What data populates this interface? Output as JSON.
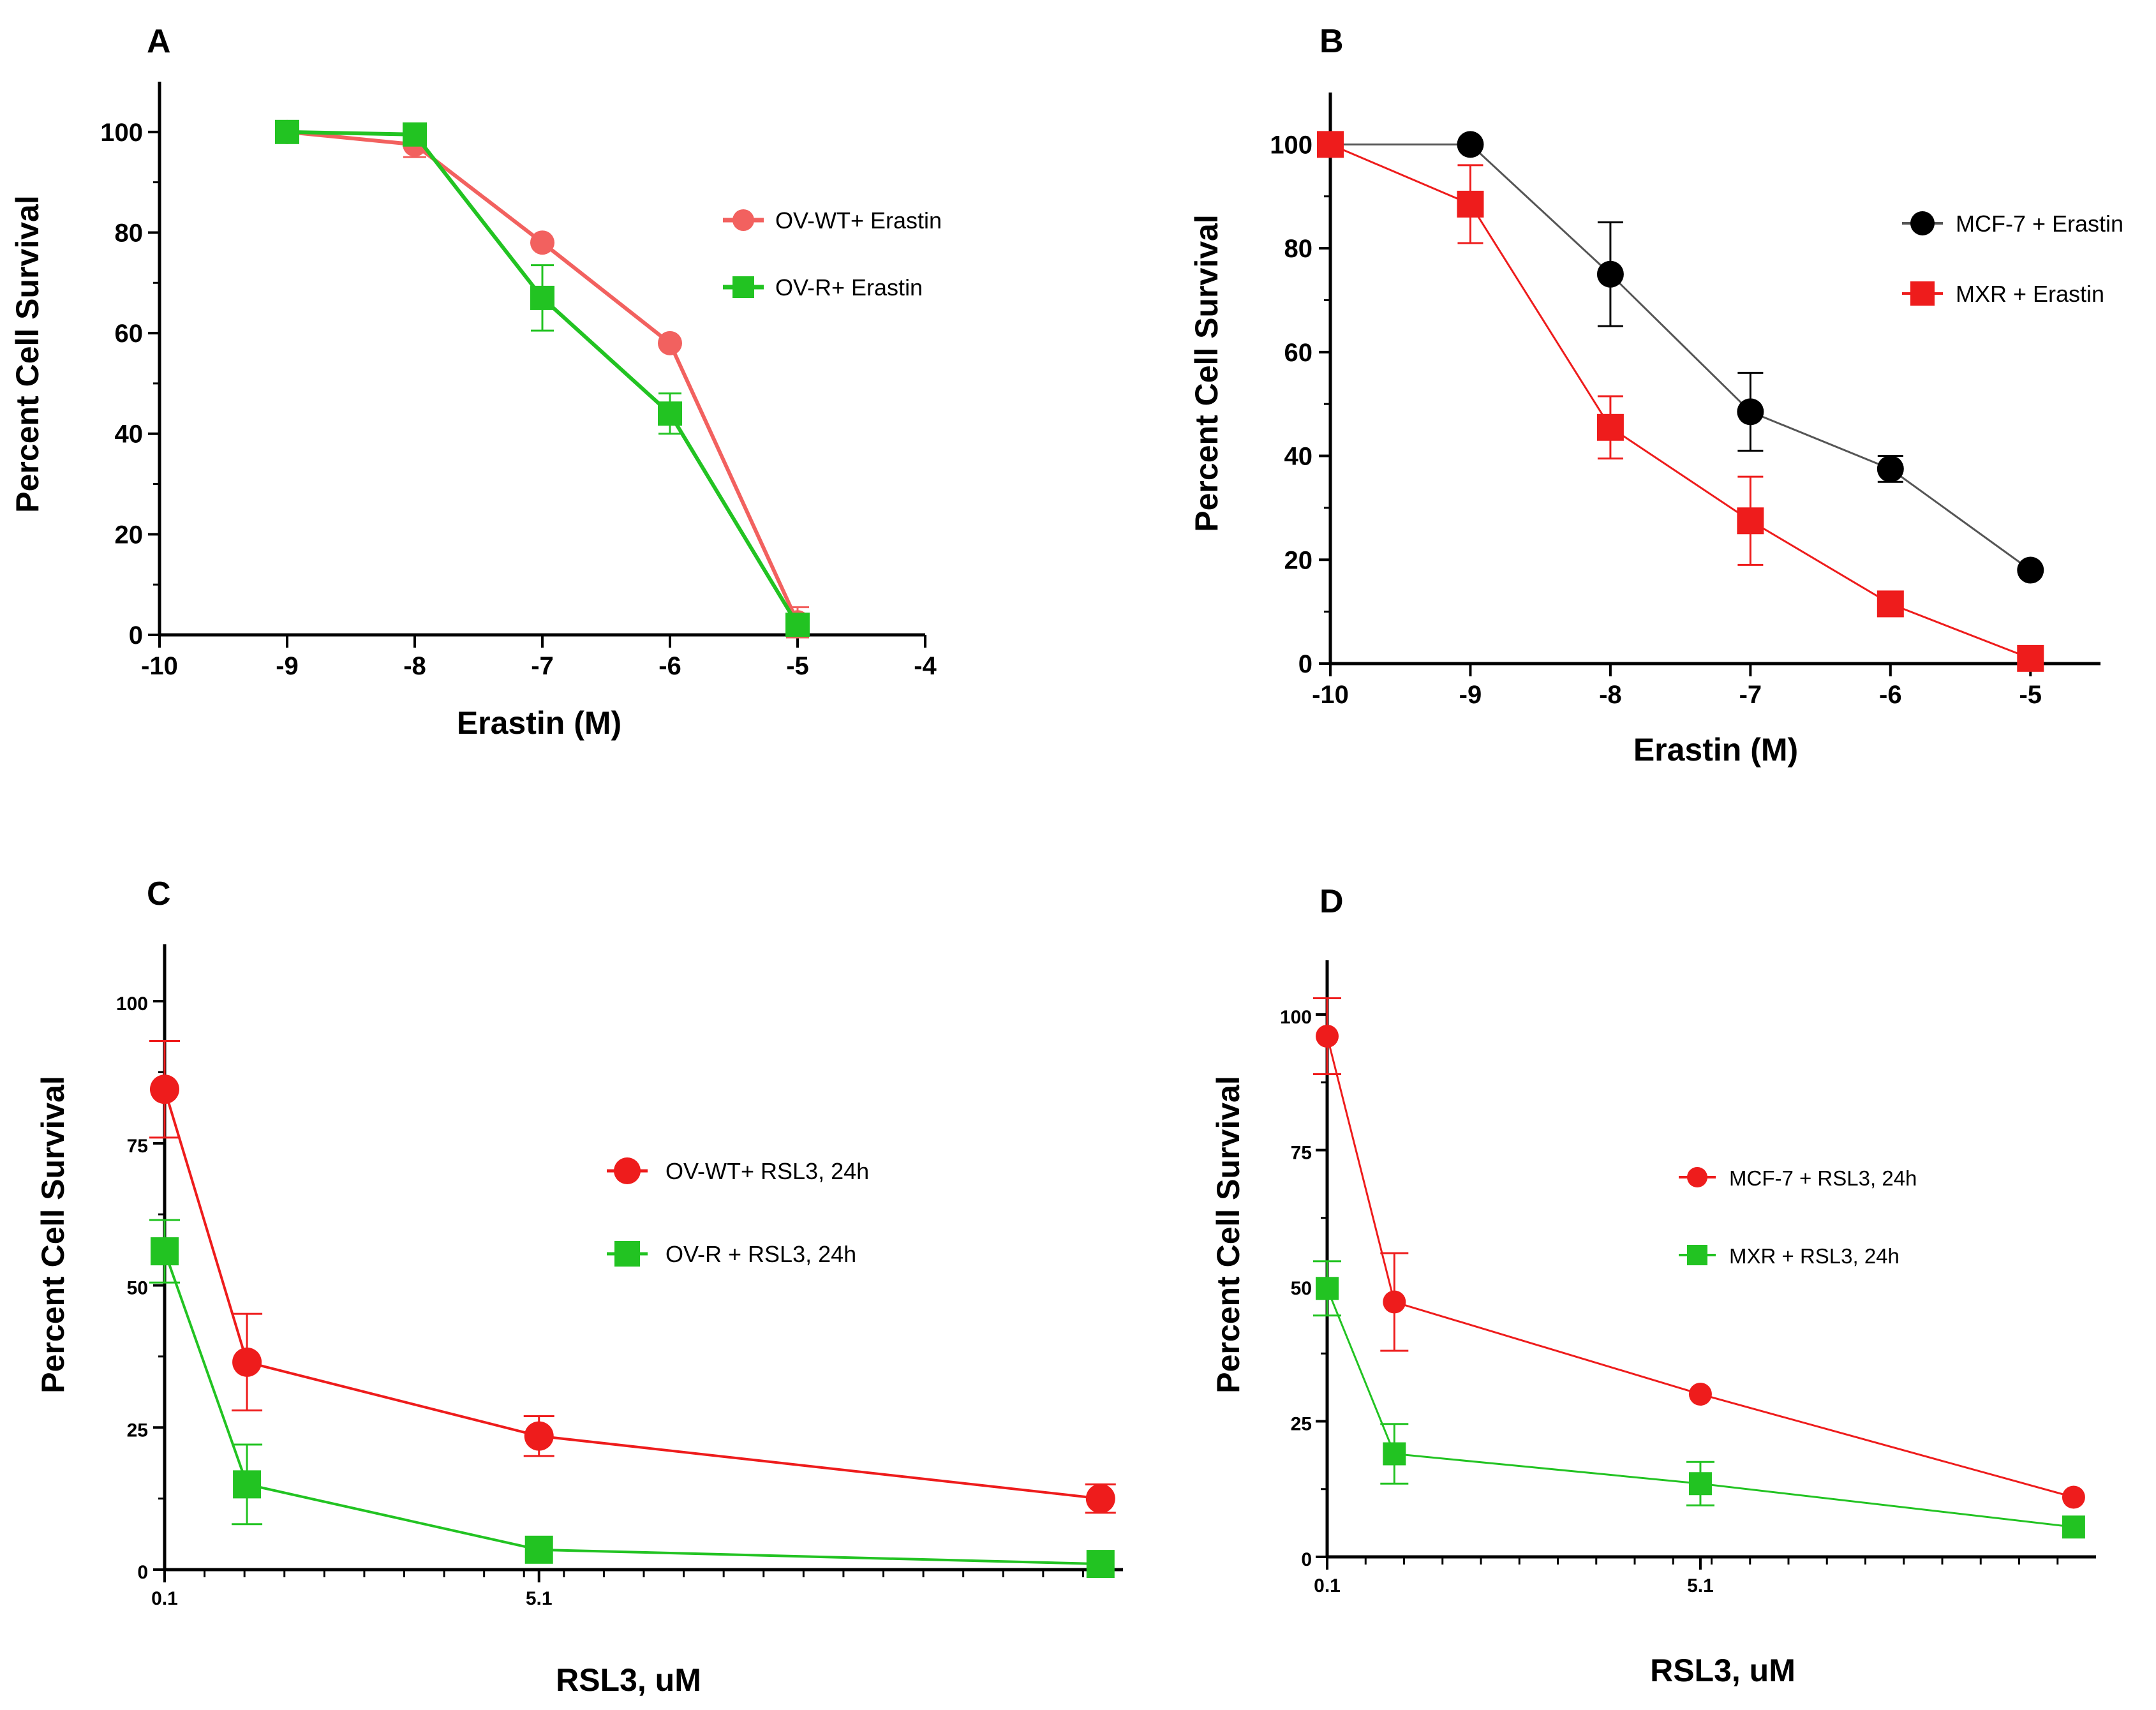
{
  "chart_data": [
    {
      "id": "A",
      "type": "line",
      "panel_label": "A",
      "xlabel": "Erastin (M)",
      "ylabel": "Percent Cell Survival",
      "xlim": [
        -10,
        -4
      ],
      "ylim": [
        0,
        110
      ],
      "xticks": [
        -10,
        -9,
        -8,
        -7,
        -6,
        -5,
        -4
      ],
      "yticks": [
        0,
        20,
        40,
        60,
        80,
        100
      ],
      "xtick_labels": [
        "-10",
        "-9",
        "-8",
        "-7",
        "-6",
        "-5",
        "-4"
      ],
      "ytick_labels": [
        "0",
        "20",
        "40",
        "60",
        "80",
        "100"
      ],
      "legend_position": "top-right",
      "series": [
        {
          "name": "OV-WT+ Erastin",
          "color": "#f2615f",
          "marker": "circle",
          "x": [
            -9,
            -8,
            -7,
            -6,
            -5
          ],
          "y": [
            100,
            97.5,
            78,
            58,
            2.5
          ],
          "err": [
            0,
            2.5,
            0,
            0,
            3
          ]
        },
        {
          "name": "OV-R+ Erastin",
          "color": "#22c322",
          "marker": "square",
          "x": [
            -9,
            -8,
            -7,
            -6,
            -5
          ],
          "y": [
            100,
            99.5,
            67,
            44,
            2
          ],
          "err": [
            0,
            1.5,
            6.5,
            4,
            2
          ]
        }
      ]
    },
    {
      "id": "B",
      "type": "line",
      "panel_label": "B",
      "xlabel": "Erastin (M)",
      "ylabel": "Percent Cell Survival",
      "xlim": [
        -10,
        -4.5
      ],
      "ylim": [
        0,
        110
      ],
      "xticks": [
        -10,
        -9,
        -8,
        -7,
        -6,
        -5
      ],
      "yticks": [
        0,
        20,
        40,
        60,
        80,
        100
      ],
      "xtick_labels": [
        "-10",
        "-9",
        "-8",
        "-7",
        "-6",
        "-5"
      ],
      "ytick_labels": [
        "0",
        "20",
        "40",
        "60",
        "80",
        "100"
      ],
      "legend_position": "top-right",
      "series": [
        {
          "name": "MCF-7 + Erastin",
          "color": "#000000",
          "marker": "circle",
          "line_color": "#555555",
          "x": [
            -10,
            -9,
            -8,
            -7,
            -6,
            -5
          ],
          "y": [
            100,
            100,
            75,
            48.5,
            37.5,
            18
          ],
          "err": [
            0,
            0,
            10,
            7.5,
            2.5,
            0
          ]
        },
        {
          "name": "MXR + Erastin",
          "color": "#ee1c1c",
          "marker": "square",
          "x": [
            -10,
            -9,
            -8,
            -7,
            -6,
            -5
          ],
          "y": [
            100,
            88.5,
            45.5,
            27.5,
            11.5,
            1
          ],
          "err": [
            0,
            7.5,
            6,
            8.5,
            0,
            0
          ]
        }
      ]
    },
    {
      "id": "C",
      "type": "line",
      "panel_label": "C",
      "xlabel": "RSL3, uM",
      "ylabel": "Percent Cell Survival",
      "xlim": [
        0.1,
        12.9
      ],
      "ylim": [
        0,
        110
      ],
      "xticks": [
        0.1,
        5.1
      ],
      "yticks": [
        0,
        25,
        50,
        75,
        100
      ],
      "xtick_labels": [
        "0.1",
        "5.1"
      ],
      "ytick_labels": [
        "0",
        "25",
        "50",
        "75",
        "100"
      ],
      "legend_position": "center-right",
      "series": [
        {
          "name": "OV-WT+ RSL3, 24h",
          "color": "#ee1c1c",
          "marker": "circle",
          "x": [
            0.1,
            1.2,
            5.1,
            12.6
          ],
          "y": [
            84.5,
            36.5,
            23.5,
            12.5
          ],
          "err": [
            8.5,
            8.5,
            3.5,
            2.5
          ]
        },
        {
          "name": "OV-R + RSL3, 24h",
          "color": "#22c322",
          "marker": "square",
          "x": [
            0.1,
            1.2,
            5.1,
            12.6
          ],
          "y": [
            56,
            15,
            3.5,
            1
          ],
          "err": [
            5.5,
            7,
            0,
            0
          ]
        }
      ]
    },
    {
      "id": "D",
      "type": "line",
      "panel_label": "D",
      "xlabel": "RSL3, uM",
      "ylabel": "Percent Cell Survival",
      "xlim": [
        0.1,
        10.4
      ],
      "ylim": [
        0,
        110
      ],
      "xticks": [
        0.1,
        5.1
      ],
      "yticks": [
        0,
        25,
        50,
        75,
        100
      ],
      "xtick_labels": [
        "0.1",
        "5.1"
      ],
      "ytick_labels": [
        "0",
        "25",
        "50",
        "75",
        "100"
      ],
      "legend_position": "center-right",
      "series": [
        {
          "name": "MCF-7 + RSL3, 24h",
          "color": "#ee1c1c",
          "marker": "circle",
          "x": [
            0.1,
            1.0,
            5.1,
            10.1
          ],
          "y": [
            96,
            47,
            30,
            11
          ],
          "err": [
            7,
            9,
            0,
            0
          ]
        },
        {
          "name": "MXR + RSL3, 24h",
          "color": "#22c322",
          "marker": "square",
          "x": [
            0.1,
            1.0,
            5.1,
            10.1
          ],
          "y": [
            49.5,
            19,
            13.5,
            5.5
          ],
          "err": [
            5,
            5.5,
            4,
            0
          ]
        }
      ]
    }
  ]
}
